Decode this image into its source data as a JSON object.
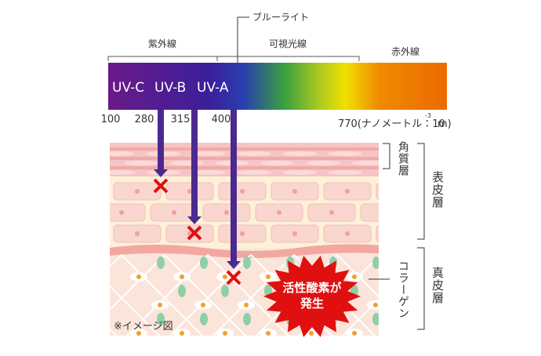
{
  "spectrum": {
    "blue_light": "ブルーライト",
    "ranges": [
      "紫外線",
      "可視光線",
      "赤外線"
    ],
    "bands": [
      "UV-C",
      "UV-B",
      "UV-A"
    ],
    "wavelengths": [
      "100",
      "280",
      "315",
      "400"
    ],
    "unit_label": {
      "prefix": "770(ナノメートル：10",
      "exponent": "-3",
      "suffix": "m)"
    }
  },
  "skin": {
    "layers": [
      "角質層",
      "表皮層",
      "真皮層"
    ],
    "collagen": "コラーゲン",
    "burst": [
      "活性酸素が",
      "発生"
    ],
    "note": "※イメージ図"
  }
}
